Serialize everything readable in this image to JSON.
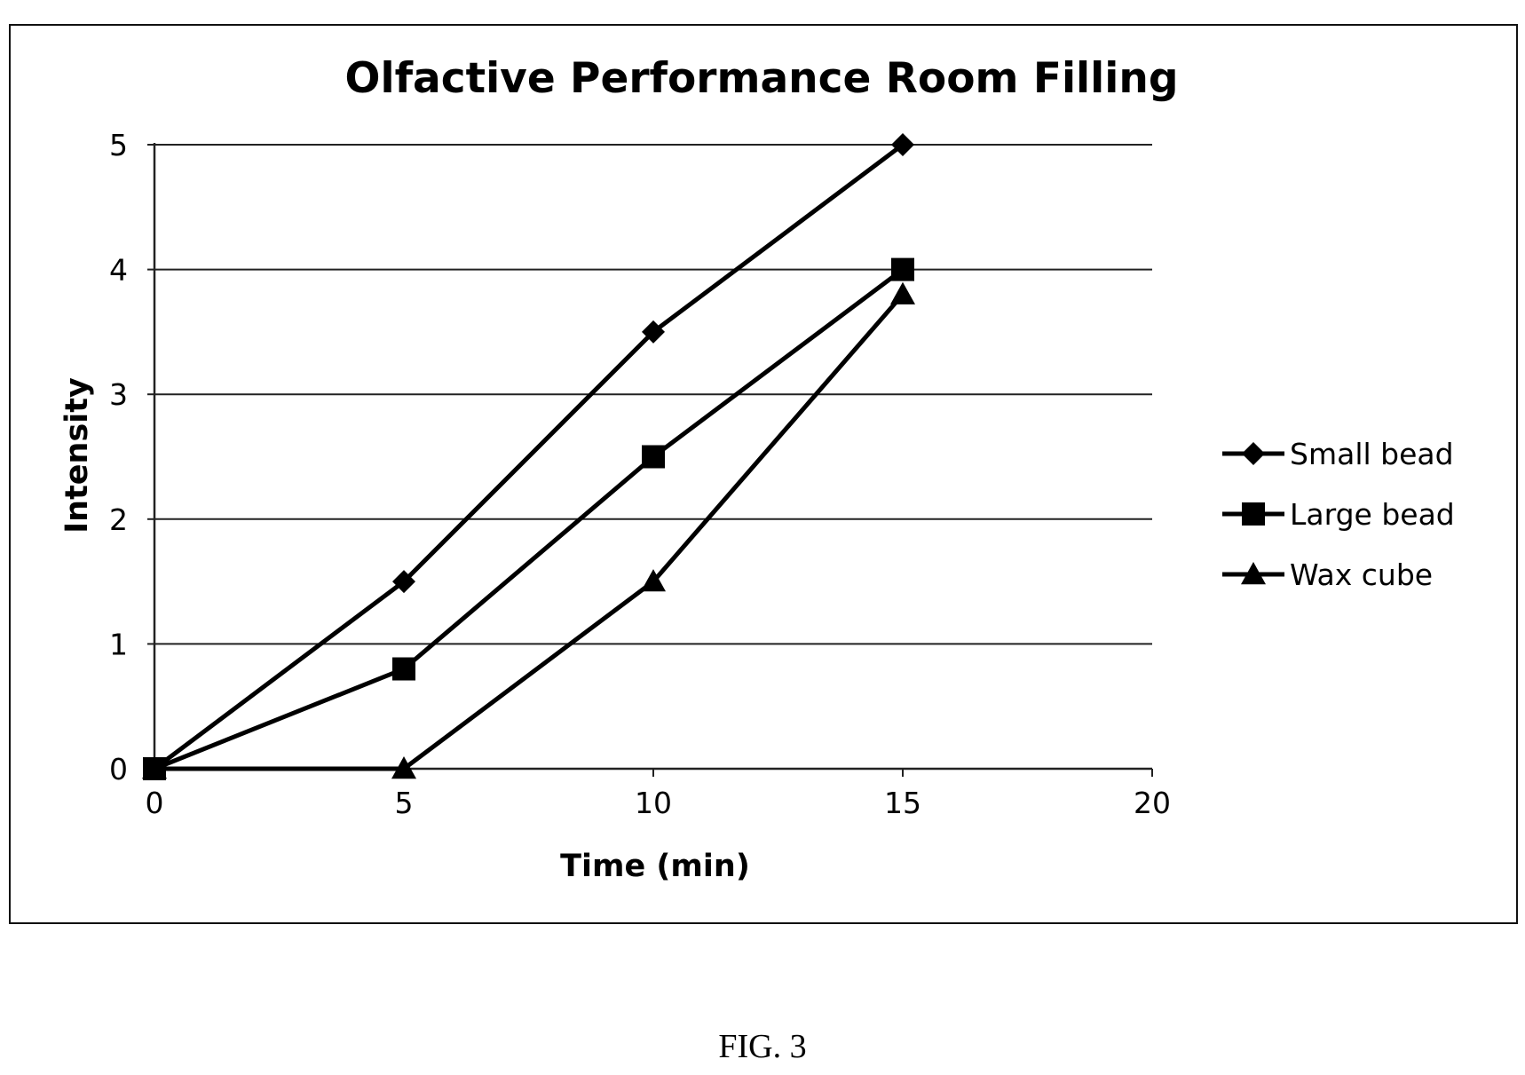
{
  "figure_caption": "FIG. 3",
  "chart_data": {
    "type": "line",
    "title": "Olfactive Performance Room Filling",
    "xlabel": "Time (min)",
    "ylabel": "Intensity",
    "xlim": [
      0,
      20
    ],
    "ylim": [
      0,
      5
    ],
    "xticks": [
      0,
      5,
      10,
      15,
      20
    ],
    "yticks": [
      0,
      1,
      2,
      3,
      4,
      5
    ],
    "grid": "horizontal",
    "legend_position": "right",
    "x": [
      0,
      5,
      10,
      15
    ],
    "series": [
      {
        "name": "Small bead",
        "marker": "diamond",
        "values": [
          0,
          1.5,
          3.5,
          5
        ]
      },
      {
        "name": "Large bead",
        "marker": "square",
        "values": [
          0,
          0.8,
          2.5,
          4
        ]
      },
      {
        "name": "Wax cube",
        "marker": "triangle",
        "values": [
          0,
          0,
          1.5,
          3.8
        ]
      }
    ]
  }
}
